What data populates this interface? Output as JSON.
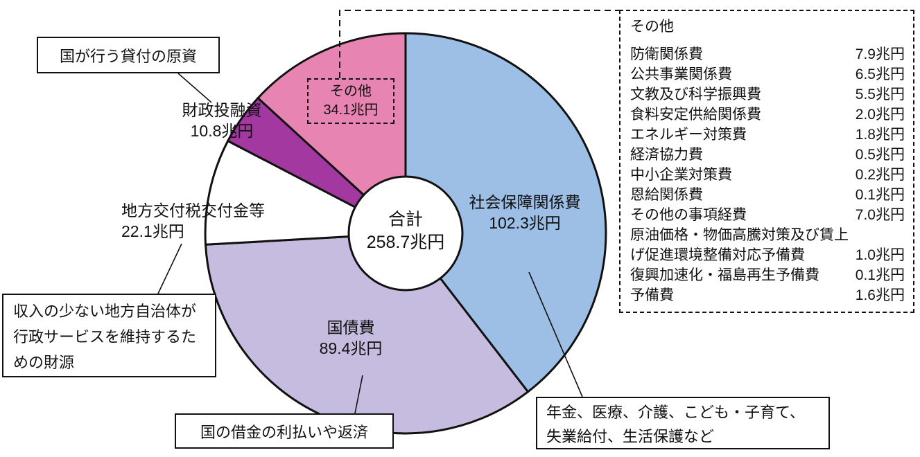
{
  "chart_data": {
    "type": "pie",
    "title": "",
    "unit": "兆円",
    "direction": "clockwise",
    "start_angle_deg": 0,
    "donut": true,
    "center_label": "合計",
    "center_value": "258.7兆円",
    "total": 258.7,
    "segments": [
      {
        "name": "社会保障関係費",
        "value": 102.3,
        "display": "102.3兆円",
        "color": "#9dbee5"
      },
      {
        "name": "国債費",
        "value": 89.4,
        "display": "89.4兆円",
        "color": "#c5bcdf"
      },
      {
        "name": "地方交付税交付金等",
        "value": 22.1,
        "display": "22.1兆円",
        "color": "#ffffff"
      },
      {
        "name": "財政投融資",
        "value": 10.8,
        "display": "10.8兆円",
        "color": "#a238a0"
      },
      {
        "name": "その他",
        "value": 34.1,
        "display": "34.1兆円",
        "color": "#e884b1"
      }
    ]
  },
  "labels": {
    "shakai": {
      "line1": "社会保障関係費",
      "line2": "102.3兆円"
    },
    "kokusai": {
      "line1": "国債費",
      "line2": "89.4兆円"
    },
    "chihou": {
      "line1": "地方交付税交付金等",
      "line2": "22.1兆円"
    },
    "zaisei": {
      "line1": "財政投融資",
      "line2": "10.8兆円"
    },
    "sonota": {
      "line1": "その他",
      "line2": "34.1兆円"
    },
    "center": {
      "line1": "合計",
      "line2": "258.7兆円"
    }
  },
  "callouts": {
    "loan_note": "国が行う貸付の原資",
    "local_gov_note": "収入の少ない地方自治体が行政サービスを維持するための財源",
    "debt_note": "国の借金の利払いや返済",
    "social_note": "年金、医療、介護、こども・子育て、失業給付、生活保護など"
  },
  "detail_box": {
    "title": "その他",
    "items": [
      {
        "name": "防衛関係費",
        "value": "7.9兆円"
      },
      {
        "name": "公共事業関係費",
        "value": "6.5兆円"
      },
      {
        "name": "文教及び科学振興費",
        "value": "5.5兆円"
      },
      {
        "name": "食料安定供給関係費",
        "value": "2.0兆円"
      },
      {
        "name": "エネルギー対策費",
        "value": "1.8兆円"
      },
      {
        "name": "経済協力費",
        "value": "0.5兆円"
      },
      {
        "name": "中小企業対策費",
        "value": "0.2兆円"
      },
      {
        "name": "恩給関係費",
        "value": "0.1兆円"
      },
      {
        "name": "その他の事項経費",
        "value": "7.0兆円"
      },
      {
        "name": "原油価格・物価高騰対策及び賃上げ促進環境整備対応予備費",
        "value": "1.0兆円"
      },
      {
        "name": "復興加速化・福島再生予備費",
        "value": "0.1兆円"
      },
      {
        "name": "予備費",
        "value": "1.6兆円"
      }
    ]
  }
}
